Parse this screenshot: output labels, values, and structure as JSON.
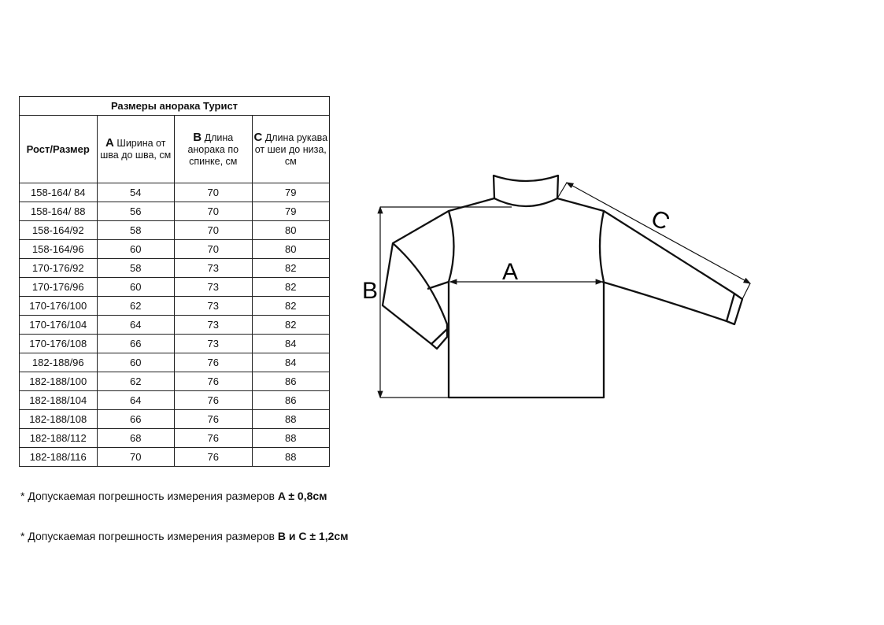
{
  "table": {
    "title": "Размеры анорака Турист",
    "headers": {
      "size": "Рост/Размер",
      "a_letter": "A",
      "a_text": "Ширина от шва до шва, см",
      "b_letter": "B",
      "b_text": "Длина анорака по спинке, см",
      "c_letter": "C",
      "c_text": "Длина рукава от  шеи до низа, см"
    },
    "rows": [
      [
        "158-164/ 84",
        "54",
        "70",
        "79"
      ],
      [
        "158-164/ 88",
        "56",
        "70",
        "79"
      ],
      [
        "158-164/92",
        "58",
        "70",
        "80"
      ],
      [
        "158-164/96",
        "60",
        "70",
        "80"
      ],
      [
        "170-176/92",
        "58",
        "73",
        "82"
      ],
      [
        "170-176/96",
        "60",
        "73",
        "82"
      ],
      [
        "170-176/100",
        "62",
        "73",
        "82"
      ],
      [
        "170-176/104",
        "64",
        "73",
        "82"
      ],
      [
        "170-176/108",
        "66",
        "73",
        "84"
      ],
      [
        "182-188/96",
        "60",
        "76",
        "84"
      ],
      [
        "182-188/100",
        "62",
        "76",
        "86"
      ],
      [
        "182-188/104",
        "64",
        "76",
        "86"
      ],
      [
        "182-188/108",
        "66",
        "76",
        "88"
      ],
      [
        "182-188/112",
        "68",
        "76",
        "88"
      ],
      [
        "182-188/116",
        "70",
        "76",
        "88"
      ]
    ]
  },
  "notes": [
    {
      "text": "* Допускаемая погрешность измерения размеров ",
      "bold": "A ± 0,8см"
    },
    {
      "text": "* Допускаемая погрешность измерения размеров ",
      "bold": "B и C ± 1,2см"
    }
  ],
  "diagram": {
    "label_a": "A",
    "label_b": "B",
    "label_c": "C"
  }
}
